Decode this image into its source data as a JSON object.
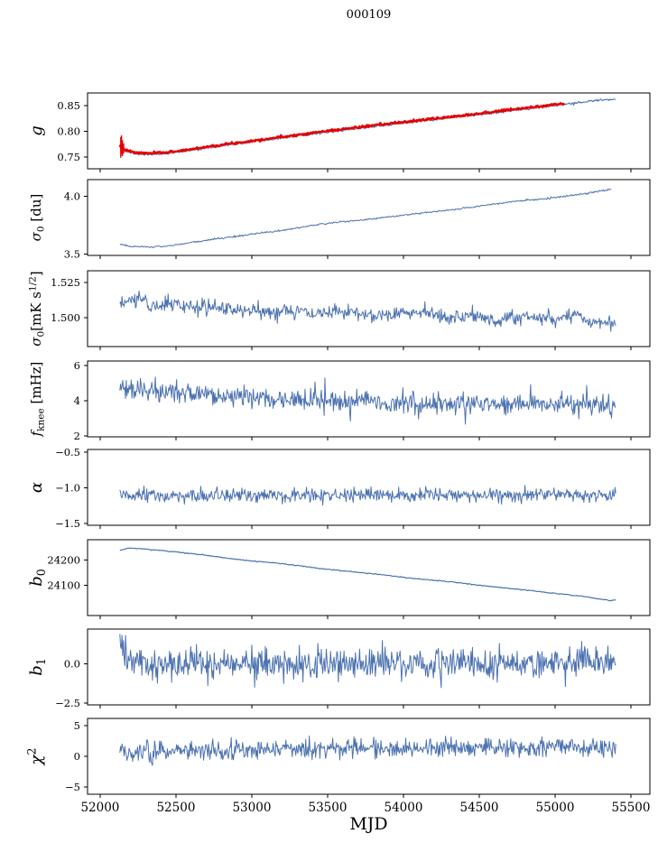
{
  "title": "000109",
  "xlabel": "MJD",
  "colors": {
    "series_blue": "#4c72b0",
    "series_red": "#e50000",
    "axis": "#000000",
    "background": "#ffffff"
  },
  "chart_data": {
    "type": "line",
    "title": "000109",
    "xlabel": "MJD",
    "grid": false,
    "legend": "none",
    "xlim": [
      51917,
      55625
    ],
    "xticks": {
      "values": [
        52000,
        52500,
        53000,
        53500,
        54000,
        54500,
        55000,
        55500
      ],
      "labels": [
        "52000",
        "52500",
        "53000",
        "53500",
        "54000",
        "54500",
        "55000",
        "55500"
      ]
    },
    "panels": [
      {
        "id": "g",
        "ylabel": "g",
        "ylabel_segments": [
          {
            "t": "g",
            "it": true
          }
        ],
        "ylim": [
          0.7276,
          0.8741
        ],
        "yticks": {
          "values": [
            0.75,
            0.8,
            0.85
          ],
          "labels": [
            "0.75",
            "0.80",
            "0.85"
          ]
        },
        "series": [
          {
            "name": "g-blue",
            "color": "#4c72b0",
            "width": 1.1,
            "seed": 11,
            "n": 650,
            "x_start": 52130,
            "x_end": 55400,
            "noise": 0.0011,
            "anchors": [
              [
                52130,
                0.769
              ],
              [
                52170,
                0.7615
              ],
              [
                52230,
                0.7565
              ],
              [
                52320,
                0.7555
              ],
              [
                52420,
                0.7568
              ],
              [
                52560,
                0.7615
              ],
              [
                52700,
                0.768
              ],
              [
                52900,
                0.7757
              ],
              [
                53100,
                0.7835
              ],
              [
                53300,
                0.7912
              ],
              [
                53500,
                0.7987
              ],
              [
                53700,
                0.8057
              ],
              [
                53900,
                0.8125
              ],
              [
                54100,
                0.8192
              ],
              [
                54300,
                0.8257
              ],
              [
                54500,
                0.8325
              ],
              [
                54700,
                0.8395
              ],
              [
                54900,
                0.8462
              ],
              [
                55050,
                0.8518
              ],
              [
                55200,
                0.857
              ],
              [
                55300,
                0.8602
              ],
              [
                55400,
                0.8625
              ]
            ]
          },
          {
            "name": "g-red",
            "color": "#e50000",
            "width": 2.4,
            "seed": 7,
            "n": 600,
            "x_start": 52130,
            "x_end": 55060,
            "noise": 0.0011,
            "anchors": [
              [
                52130,
                0.771
              ],
              [
                52170,
                0.7635
              ],
              [
                52230,
                0.7585
              ],
              [
                52320,
                0.7575
              ],
              [
                52420,
                0.7588
              ],
              [
                52560,
                0.7635
              ],
              [
                52700,
                0.77
              ],
              [
                52900,
                0.7777
              ],
              [
                53100,
                0.7855
              ],
              [
                53300,
                0.7932
              ],
              [
                53500,
                0.8007
              ],
              [
                53700,
                0.8077
              ],
              [
                53900,
                0.8145
              ],
              [
                54100,
                0.8212
              ],
              [
                54300,
                0.8277
              ],
              [
                54500,
                0.8345
              ],
              [
                54700,
                0.8415
              ],
              [
                54900,
                0.8482
              ],
              [
                55060,
                0.854
              ]
            ],
            "error_bars": [
              {
                "x": 52136,
                "y1": 0.749,
                "y2": 0.789
              },
              {
                "x": 52141,
                "y1": 0.755,
                "y2": 0.792
              },
              {
                "x": 52147,
                "y1": 0.752,
                "y2": 0.783
              },
              {
                "x": 52155,
                "y1": 0.757,
                "y2": 0.777
              }
            ]
          }
        ]
      },
      {
        "id": "sigma0-du",
        "ylabel": "σ0 [du]",
        "ylabel_segments": [
          {
            "t": "σ",
            "it": true
          },
          {
            "t": "0",
            "pos": "sub"
          },
          {
            "t": " [du]"
          }
        ],
        "ylim": [
          3.49,
          4.142
        ],
        "yticks": {
          "values": [
            3.5,
            4.0
          ],
          "labels": [
            "3.5",
            "4.0"
          ]
        },
        "series": [
          {
            "name": "sigma0-du",
            "color": "#4c72b0",
            "width": 1.0,
            "seed": 21,
            "n": 620,
            "x_start": 52130,
            "x_end": 55370,
            "noise": 0.0038,
            "anchors": [
              [
                52130,
                3.588
              ],
              [
                52200,
                3.568
              ],
              [
                52300,
                3.561
              ],
              [
                52450,
                3.571
              ],
              [
                52600,
                3.601
              ],
              [
                52800,
                3.638
              ],
              [
                53000,
                3.672
              ],
              [
                53200,
                3.706
              ],
              [
                53400,
                3.748
              ],
              [
                53550,
                3.776
              ],
              [
                53700,
                3.79
              ],
              [
                53900,
                3.821
              ],
              [
                54100,
                3.851
              ],
              [
                54300,
                3.879
              ],
              [
                54500,
                3.914
              ],
              [
                54700,
                3.949
              ],
              [
                54900,
                3.975
              ],
              [
                55050,
                3.996
              ],
              [
                55200,
                4.022
              ],
              [
                55300,
                4.047
              ],
              [
                55370,
                4.057
              ]
            ]
          }
        ]
      },
      {
        "id": "sigma0-mks",
        "ylabel": "σ0[mK s1/2]",
        "ylabel_segments": [
          {
            "t": "σ",
            "it": true
          },
          {
            "t": "0",
            "pos": "sub"
          },
          {
            "t": "[mK s"
          },
          {
            "t": "1/2",
            "pos": "sup"
          },
          {
            "t": "]"
          }
        ],
        "ylim": [
          1.4795,
          1.5333
        ],
        "yticks": {
          "values": [
            1.5,
            1.525
          ],
          "labels": [
            "1.500",
            "1.525"
          ]
        },
        "series": [
          {
            "name": "sigma0-mks",
            "color": "#4c72b0",
            "width": 1.0,
            "seed": 31,
            "n": 700,
            "x_start": 52130,
            "x_end": 55400,
            "noise": 0.0026,
            "anchors": [
              [
                52130,
                1.509
              ],
              [
                52250,
                1.5145
              ],
              [
                52330,
                1.509
              ],
              [
                52500,
                1.5095
              ],
              [
                52650,
                1.5075
              ],
              [
                52900,
                1.5058
              ],
              [
                53100,
                1.5035
              ],
              [
                53250,
                1.5058
              ],
              [
                53420,
                1.502
              ],
              [
                53600,
                1.5048
              ],
              [
                53800,
                1.5022
              ],
              [
                54000,
                1.5032
              ],
              [
                54150,
                1.5048
              ],
              [
                54300,
                1.4998
              ],
              [
                54450,
                1.5018
              ],
              [
                54600,
                1.4978
              ],
              [
                54800,
                1.5008
              ],
              [
                55000,
                1.4992
              ],
              [
                55150,
                1.5022
              ],
              [
                55250,
                1.4972
              ],
              [
                55330,
                1.4985
              ],
              [
                55400,
                1.4935
              ]
            ]
          }
        ]
      },
      {
        "id": "fknee",
        "ylabel": "fknee [mHz]",
        "ylabel_segments": [
          {
            "t": "f",
            "it": true
          },
          {
            "t": "knee",
            "pos": "sub"
          },
          {
            "t": " [mHz]"
          }
        ],
        "ylim": [
          1.95,
          6.26
        ],
        "yticks": {
          "values": [
            2,
            4,
            6
          ],
          "labels": [
            "2",
            "4",
            "6"
          ]
        },
        "series": [
          {
            "name": "fknee",
            "color": "#4c72b0",
            "width": 1.0,
            "seed": 41,
            "n": 700,
            "x_start": 52130,
            "x_end": 55400,
            "noise": 0.3,
            "spike_prob": 0.02,
            "spike_amp": 0.9,
            "spike_sign": 0,
            "anchors": [
              [
                52130,
                4.75
              ],
              [
                52300,
                4.55
              ],
              [
                52600,
                4.38
              ],
              [
                53000,
                4.18
              ],
              [
                53400,
                4.02
              ],
              [
                53800,
                3.95
              ],
              [
                54200,
                3.87
              ],
              [
                54600,
                3.82
              ],
              [
                55000,
                3.77
              ],
              [
                55400,
                3.68
              ]
            ]
          }
        ]
      },
      {
        "id": "alpha",
        "ylabel": "α",
        "ylabel_segments": [
          {
            "t": "α",
            "it": true
          }
        ],
        "ylim": [
          -1.526,
          -0.462
        ],
        "yticks": {
          "values": [
            -1.5,
            -1.0,
            -0.5
          ],
          "labels": [
            "−1.5",
            "−1.0",
            "−0.5"
          ]
        },
        "series": [
          {
            "name": "alpha",
            "color": "#4c72b0",
            "width": 1.0,
            "seed": 51,
            "n": 700,
            "x_start": 52130,
            "x_end": 55400,
            "noise": 0.048,
            "anchors": [
              [
                52130,
                -1.115
              ],
              [
                53500,
                -1.112
              ],
              [
                55400,
                -1.102
              ]
            ]
          }
        ]
      },
      {
        "id": "b0",
        "ylabel": "b0",
        "ylabel_segments": [
          {
            "t": "b",
            "it": true
          },
          {
            "t": "0",
            "pos": "sub"
          }
        ],
        "ylim": [
          23982,
          24279
        ],
        "yticks": {
          "values": [
            24100,
            24200
          ],
          "labels": [
            "24100",
            "24200"
          ]
        },
        "series": [
          {
            "name": "b0",
            "color": "#4c72b0",
            "width": 1.2,
            "seed": 61,
            "n": 520,
            "x_start": 52130,
            "x_end": 55400,
            "noise": 0.9,
            "anchors": [
              [
                52130,
                24237
              ],
              [
                52180,
                24246
              ],
              [
                52260,
                24244
              ],
              [
                52400,
                24237
              ],
              [
                52550,
                24228
              ],
              [
                52700,
                24218
              ],
              [
                52850,
                24206
              ],
              [
                53000,
                24196
              ],
              [
                53150,
                24188
              ],
              [
                53300,
                24178
              ],
              [
                53450,
                24166
              ],
              [
                53600,
                24157
              ],
              [
                53750,
                24148
              ],
              [
                53900,
                24139
              ],
              [
                54050,
                24128
              ],
              [
                54200,
                24120
              ],
              [
                54350,
                24112
              ],
              [
                54500,
                24100
              ],
              [
                54650,
                24092
              ],
              [
                54800,
                24082
              ],
              [
                54950,
                24072
              ],
              [
                55100,
                24062
              ],
              [
                55200,
                24056
              ],
              [
                55300,
                24046
              ],
              [
                55360,
                24040
              ],
              [
                55400,
                24044
              ]
            ]
          }
        ]
      },
      {
        "id": "b1",
        "ylabel": "b1",
        "ylabel_segments": [
          {
            "t": "b",
            "it": true
          },
          {
            "t": "1",
            "pos": "sub"
          }
        ],
        "ylim": [
          -2.62,
          2.21
        ],
        "yticks": {
          "values": [
            -2.5,
            0.0
          ],
          "labels": [
            "−2.5",
            "0.0"
          ]
        },
        "series": [
          {
            "name": "b1",
            "color": "#4c72b0",
            "width": 1.0,
            "seed": 71,
            "n": 700,
            "x_start": 52130,
            "x_end": 55400,
            "noise": 0.5,
            "spike_prob": 0.012,
            "spike_amp": 1.1,
            "spike_sign": 0,
            "anchors": [
              [
                52130,
                1.7
              ],
              [
                52150,
                1.0
              ],
              [
                52170,
                0.6
              ],
              [
                52220,
                0.25
              ],
              [
                52350,
                0.0
              ],
              [
                53500,
                -0.05
              ],
              [
                54500,
                0.0
              ],
              [
                55000,
                0.1
              ],
              [
                55400,
                0.1
              ]
            ]
          }
        ]
      },
      {
        "id": "chi2",
        "ylabel": "χ2",
        "ylabel_segments": [
          {
            "t": "χ",
            "it": true
          },
          {
            "t": "2",
            "pos": "sup"
          }
        ],
        "ylim": [
          -6.18,
          6.18
        ],
        "yticks": {
          "values": [
            -5,
            0,
            5
          ],
          "labels": [
            "−5",
            "0",
            "5"
          ]
        },
        "series": [
          {
            "name": "chi2",
            "color": "#4c72b0",
            "width": 1.0,
            "seed": 81,
            "n": 700,
            "x_start": 52130,
            "x_end": 55400,
            "noise": 0.78,
            "spike_prob": 0.008,
            "spike_amp": 1.0,
            "spike_sign": 0,
            "anchors": [
              [
                52130,
                0.75
              ],
              [
                53000,
                1.05
              ],
              [
                53800,
                1.25
              ],
              [
                54800,
                1.45
              ],
              [
                55400,
                1.5
              ]
            ]
          }
        ]
      }
    ]
  }
}
